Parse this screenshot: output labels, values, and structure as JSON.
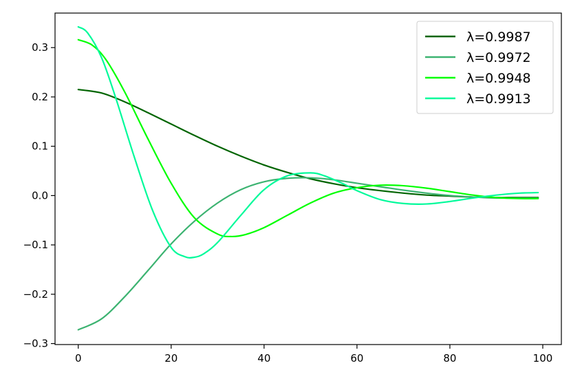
{
  "chart_data": {
    "type": "line",
    "title": "",
    "xlabel": "",
    "ylabel": "",
    "xlim": [
      -5,
      104
    ],
    "ylim": [
      -0.302,
      0.37
    ],
    "x_ticks": [
      0,
      20,
      40,
      60,
      80,
      100
    ],
    "x_tick_labels": [
      "0",
      "20",
      "40",
      "60",
      "80",
      "100"
    ],
    "y_ticks": [
      -0.3,
      -0.2,
      -0.1,
      0.0,
      0.1,
      0.2,
      0.3
    ],
    "y_tick_labels": [
      "−0.3",
      "−0.2",
      "−0.1",
      "0.0",
      "0.1",
      "0.2",
      "0.3"
    ],
    "grid": false,
    "legend_position": "top-right",
    "series": [
      {
        "name": "λ=0.9987",
        "color": "#006400",
        "x": [
          0,
          5,
          10,
          15,
          20,
          25,
          30,
          35,
          40,
          45,
          50,
          55,
          60,
          65,
          70,
          75,
          80,
          85,
          90,
          95,
          99
        ],
        "y": [
          0.215,
          0.208,
          0.19,
          0.168,
          0.145,
          0.122,
          0.1,
          0.08,
          0.062,
          0.047,
          0.034,
          0.024,
          0.016,
          0.01,
          0.005,
          0.001,
          -0.001,
          -0.003,
          -0.004,
          -0.004,
          -0.004
        ]
      },
      {
        "name": "λ=0.9972",
        "color": "#3cb371",
        "x": [
          0,
          5,
          10,
          15,
          20,
          25,
          30,
          35,
          40,
          45,
          50,
          55,
          60,
          65,
          70,
          75,
          80,
          85,
          90,
          95,
          99
        ],
        "y": [
          -0.272,
          -0.25,
          -0.205,
          -0.152,
          -0.098,
          -0.052,
          -0.015,
          0.012,
          0.028,
          0.035,
          0.036,
          0.032,
          0.025,
          0.018,
          0.011,
          0.005,
          0.0,
          -0.003,
          -0.005,
          -0.005,
          -0.005
        ]
      },
      {
        "name": "λ=0.9948",
        "color": "#00ff00",
        "x": [
          0,
          3,
          6,
          10,
          15,
          20,
          25,
          30,
          33,
          36,
          40,
          45,
          50,
          55,
          60,
          65,
          70,
          75,
          80,
          85,
          90,
          95,
          99
        ],
        "y": [
          0.316,
          0.305,
          0.275,
          0.21,
          0.115,
          0.025,
          -0.045,
          -0.078,
          -0.083,
          -0.079,
          -0.065,
          -0.04,
          -0.015,
          0.005,
          0.016,
          0.021,
          0.02,
          0.015,
          0.008,
          0.001,
          -0.004,
          -0.006,
          -0.006
        ]
      },
      {
        "name": "λ=0.9913",
        "color": "#00fa9a",
        "x": [
          0,
          2,
          5,
          8,
          12,
          16,
          20,
          23,
          25,
          27,
          30,
          35,
          40,
          45,
          50,
          53,
          57,
          60,
          65,
          70,
          75,
          80,
          85,
          90,
          95,
          99
        ],
        "y": [
          0.342,
          0.33,
          0.28,
          0.2,
          0.08,
          -0.03,
          -0.105,
          -0.124,
          -0.125,
          -0.118,
          -0.095,
          -0.04,
          0.012,
          0.04,
          0.046,
          0.04,
          0.024,
          0.01,
          -0.008,
          -0.016,
          -0.017,
          -0.012,
          -0.005,
          0.001,
          0.005,
          0.006
        ]
      }
    ]
  }
}
